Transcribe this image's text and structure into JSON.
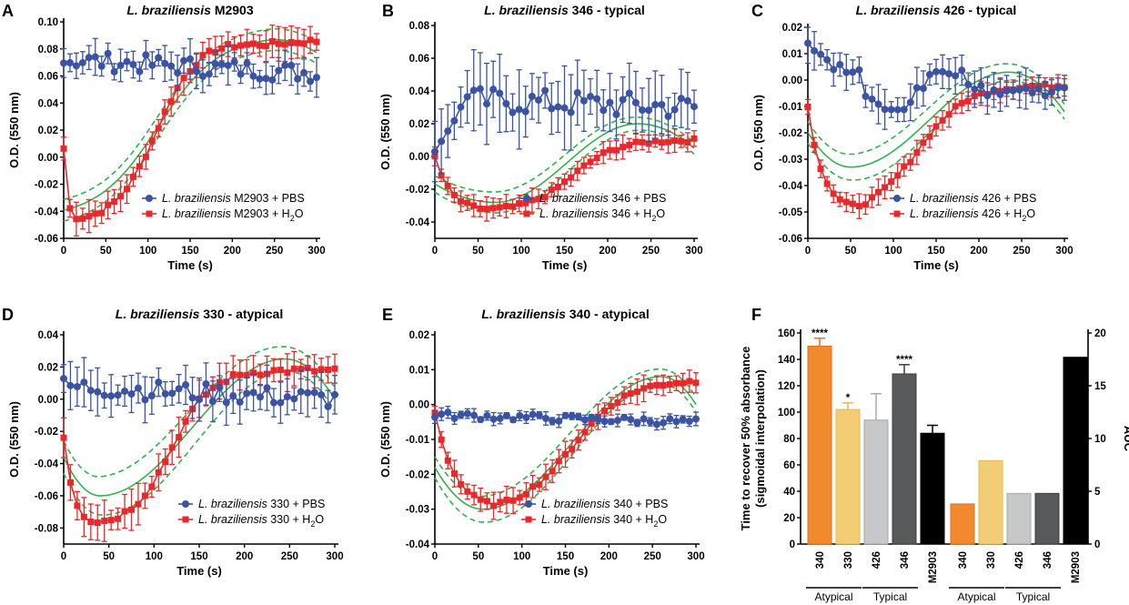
{
  "colors": {
    "pbs": "#3a53a4",
    "h2o": "#e8282a",
    "fit": "#2fb34a",
    "b340": "#f08a2c",
    "b330": "#f2cd76",
    "b426": "#c6c7c9",
    "b346": "#58595b",
    "bM2903": "#000000"
  },
  "chart_data": [
    {
      "letter": "A",
      "type": "line",
      "title_italic": "L. braziliensis",
      "title_rest": " M2903",
      "xlabel": "Time (s)",
      "ylabel": "O.D. (550 nm)",
      "xlim": [
        0,
        300
      ],
      "ylim": [
        -0.06,
        0.1
      ],
      "xticks": [
        0,
        50,
        100,
        150,
        200,
        250,
        300
      ],
      "yticks": [
        -0.06,
        -0.04,
        -0.02,
        0.0,
        0.02,
        0.04,
        0.06,
        0.08,
        0.1
      ],
      "ytick_labels": [
        "-0.06",
        "-0.04",
        "-0.02",
        "0.00",
        "0.02",
        "0.04",
        "0.06",
        "0.08",
        "0.10"
      ],
      "legend": [
        {
          "italic": "L. braziliensis",
          "rest": " M2903 + PBS"
        },
        {
          "italic": "L. braziliensis",
          "rest": " M2903 + H",
          "sub": "2",
          "tail": "O"
        }
      ],
      "pbs": {
        "base": 0.072,
        "noise": 0.007,
        "err": 0.012,
        "trend": -0.01
      },
      "h2o": {
        "shape": "sigmoid",
        "start": 0.005,
        "min": -0.048,
        "tmin": 8,
        "end": 0.086,
        "mid": 110,
        "k": 24,
        "dip": -0.002,
        "tdip": 240,
        "err": 0.01
      },
      "fit": {
        "shape": "sigmoid",
        "min": -0.045,
        "end": 0.09,
        "mid": 112,
        "k": 36,
        "band": 0.008,
        "droop": 0.012
      }
    },
    {
      "letter": "B",
      "type": "line",
      "title_italic": "L. braziliensis",
      "title_rest": " 346 - typical",
      "xlabel": "Time (s)",
      "ylabel": "O.D. (550 nm)",
      "xlim": [
        0,
        300
      ],
      "ylim": [
        -0.05,
        0.08
      ],
      "xticks": [
        0,
        50,
        100,
        150,
        200,
        250,
        300
      ],
      "yticks": [
        -0.04,
        -0.02,
        0.0,
        0.02,
        0.04,
        0.06,
        0.08
      ],
      "ytick_labels": [
        "-0.04",
        "-0.02",
        "0.00",
        "0.02",
        "0.04",
        "0.06",
        "0.08"
      ],
      "legend": [
        {
          "italic": "L. braziliensis",
          "rest": " 346 + PBS"
        },
        {
          "italic": "L. braziliensis",
          "rest": " 346 + H",
          "sub": "2",
          "tail": "O"
        }
      ],
      "pbs": {
        "base": 0.035,
        "rise": true,
        "noise": 0.008,
        "err": 0.02,
        "trend": -0.005
      },
      "h2o": {
        "shape": "dipfit",
        "start": 0.0,
        "min": -0.033,
        "tmin": 40,
        "end": 0.01,
        "mid": 160,
        "k": 25,
        "err": 0.006
      },
      "fit": {
        "shape": "wave",
        "min": -0.028,
        "tmin": 70,
        "max": 0.02,
        "tmax": 235,
        "end": 0.005,
        "band": 0.005
      }
    },
    {
      "letter": "C",
      "type": "line",
      "title_italic": "L. braziliensis",
      "title_rest": " 426 - typical",
      "xlabel": "Time (s)",
      "ylabel": "O.D. (550 nm)",
      "xlim": [
        0,
        300
      ],
      "ylim": [
        -0.06,
        0.02
      ],
      "xticks": [
        0,
        50,
        100,
        150,
        200,
        250,
        300
      ],
      "yticks": [
        -0.06,
        -0.05,
        -0.04,
        -0.03,
        -0.02,
        -0.01,
        0.0,
        0.01,
        0.02
      ],
      "ytick_labels": [
        "-0.06",
        "-0.05",
        "-0.04",
        "-0.03",
        "-0.02",
        "-0.01",
        "0.00",
        "0.01",
        "0.02"
      ],
      "legend": [
        {
          "italic": "L. braziliensis",
          "rest": " 426 + PBS"
        },
        {
          "italic": "L. braziliensis",
          "rest": " 426 + H",
          "sub": "2",
          "tail": "O"
        }
      ],
      "pbs": {
        "base": 0.0,
        "decay": true,
        "noise": 0.004,
        "err": 0.006,
        "trend": 0
      },
      "h2o": {
        "shape": "dipfit",
        "start": -0.01,
        "min": -0.05,
        "tmin": 40,
        "end": -0.002,
        "mid": 130,
        "k": 28,
        "err": 0.004
      },
      "fit": {
        "shape": "wave",
        "min": -0.033,
        "tmin": 50,
        "max": 0.003,
        "tmax": 235,
        "end": -0.012,
        "band": 0.004
      }
    },
    {
      "letter": "D",
      "type": "line",
      "title_italic": "L. braziliensis",
      "title_rest": " 330 - atypical",
      "xlabel": "Time (s)",
      "ylabel": "O.D. (550 nm)",
      "xlim": [
        0,
        300
      ],
      "ylim": [
        -0.09,
        0.04
      ],
      "xticks": [
        0,
        50,
        100,
        150,
        200,
        250,
        300
      ],
      "yticks": [
        -0.08,
        -0.06,
        -0.04,
        -0.02,
        0.0,
        0.02,
        0.04
      ],
      "ytick_labels": [
        "-0.08",
        "-0.06",
        "-0.04",
        "-0.02",
        "0.00",
        "0.02",
        "0.04"
      ],
      "legend": [
        {
          "italic": "L. braziliensis",
          "rest": " 330 + PBS"
        },
        {
          "italic": "L. braziliensis",
          "rest": " 330 + H",
          "sub": "2",
          "tail": "O"
        }
      ],
      "pbs": {
        "base": 0.008,
        "noise": 0.006,
        "err": 0.012,
        "trend": -0.008
      },
      "h2o": {
        "shape": "dipfit",
        "start": -0.02,
        "min": -0.078,
        "tmin": 25,
        "end": 0.018,
        "mid": 120,
        "k": 22,
        "err": 0.01
      },
      "fit": {
        "shape": "wave",
        "min": -0.06,
        "tmin": 40,
        "max": 0.025,
        "tmax": 245,
        "end": 0.0,
        "band": 0.01
      }
    },
    {
      "letter": "E",
      "type": "line",
      "title_italic": "L. braziliensis",
      "title_rest": " 340 - atypical",
      "xlabel": "Time (s)",
      "ylabel": "O.D. (550 nm)",
      "xlim": [
        0,
        300
      ],
      "ylim": [
        -0.04,
        0.02
      ],
      "xticks": [
        0,
        50,
        100,
        150,
        200,
        250,
        300
      ],
      "yticks": [
        -0.04,
        -0.03,
        -0.02,
        -0.01,
        0.0,
        0.01,
        0.02
      ],
      "ytick_labels": [
        "-0.04",
        "-0.03",
        "-0.02",
        "-0.01",
        "0.00",
        "0.01",
        "0.02"
      ],
      "legend": [
        {
          "italic": "L. braziliensis",
          "rest": " 340 + PBS"
        },
        {
          "italic": "L. braziliensis",
          "rest": " 340 + H",
          "sub": "2",
          "tail": "O"
        }
      ],
      "pbs": {
        "base": -0.003,
        "noise": 0.001,
        "err": 0.0015,
        "trend": -0.002
      },
      "h2o": {
        "shape": "dipfit",
        "start": -0.002,
        "min": -0.03,
        "tmin": 50,
        "end": 0.007,
        "mid": 160,
        "k": 30,
        "err": 0.003
      },
      "fit": {
        "shape": "wave",
        "min": -0.03,
        "tmin": 55,
        "max": 0.008,
        "tmax": 260,
        "end": 0.0,
        "band": 0.003
      }
    },
    {
      "letter": "F",
      "type": "bar",
      "ylabel_line1": "Time to recover 50% absorbance",
      "ylabel_line2": "(sigmoidal interpolation)",
      "y2label": "AUC",
      "ylim": [
        0,
        160
      ],
      "yticks": [
        0,
        20,
        40,
        60,
        80,
        100,
        120,
        140,
        160
      ],
      "y2lim": [
        0,
        20
      ],
      "y2ticks": [
        0,
        5,
        10,
        15,
        20
      ],
      "categories": [
        "340",
        "330",
        "426",
        "346",
        "M2903"
      ],
      "time_values": [
        150,
        102,
        94,
        129,
        84
      ],
      "time_errors": [
        6,
        5,
        20,
        7,
        6
      ],
      "significance": [
        "****",
        "*",
        "",
        "****",
        ""
      ],
      "auc_values": [
        3.8,
        7.9,
        4.8,
        4.8,
        17.7
      ],
      "groups": [
        "Atypical",
        "Typical",
        "Atypical",
        "Typical"
      ]
    }
  ]
}
